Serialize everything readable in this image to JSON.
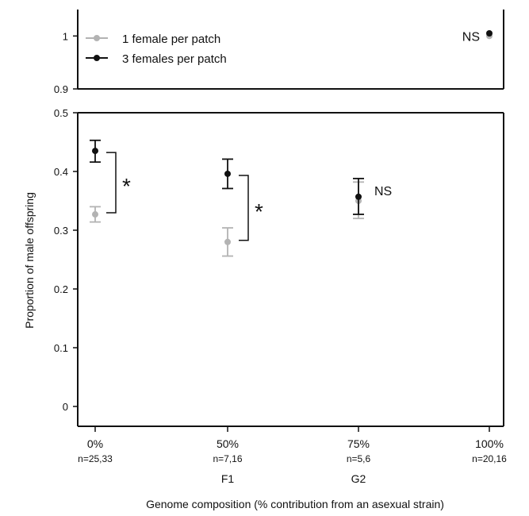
{
  "chart_data": {
    "type": "scatter",
    "xlabel": "Genome composition (% contribution from an asexual strain)",
    "ylabel": "Proportion of male offspring",
    "categories": [
      {
        "label": "0%",
        "n": "n=25,33",
        "sub": ""
      },
      {
        "label": "50%",
        "n": "n=7,16",
        "sub": "F1"
      },
      {
        "label": "75%",
        "n": "n=5,6",
        "sub": "G2"
      },
      {
        "label": "100%",
        "n": "n=20,16",
        "sub": ""
      }
    ],
    "main_ylim": [
      0,
      0.5
    ],
    "main_yticks": [
      "0",
      "0.1",
      "0.2",
      "0.3",
      "0.4",
      "0.5"
    ],
    "top_ylim": [
      0.9,
      1.05
    ],
    "top_yticks": [
      "0.9",
      "1"
    ],
    "series": [
      {
        "name": "1 female per patch",
        "color": "#b3b3b3",
        "points": [
          {
            "cat": 0,
            "y": 0.327,
            "lo": 0.314,
            "hi": 0.34
          },
          {
            "cat": 1,
            "y": 0.28,
            "lo": 0.256,
            "hi": 0.304
          },
          {
            "cat": 2,
            "y": 0.35,
            "lo": 0.32,
            "hi": 0.382
          },
          {
            "cat": 3,
            "y": 1.0,
            "lo": 1.0,
            "hi": 1.0
          }
        ]
      },
      {
        "name": "3 females per patch",
        "color": "#111111",
        "points": [
          {
            "cat": 0,
            "y": 0.435,
            "lo": 0.416,
            "hi": 0.453
          },
          {
            "cat": 1,
            "y": 0.396,
            "lo": 0.371,
            "hi": 0.421
          },
          {
            "cat": 2,
            "y": 0.357,
            "lo": 0.327,
            "hi": 0.388
          },
          {
            "cat": 3,
            "y": 1.005,
            "lo": 1.005,
            "hi": 1.005
          }
        ]
      }
    ],
    "annotations": [
      {
        "text": "*",
        "cat": 0,
        "kind": "bracket",
        "y_low": 0.327,
        "y_high": 0.435
      },
      {
        "text": "*",
        "cat": 1,
        "kind": "bracket",
        "y_low": 0.28,
        "y_high": 0.396
      },
      {
        "text": "NS",
        "cat": 2,
        "kind": "label",
        "y": 0.357
      },
      {
        "text": "NS",
        "cat": 3,
        "kind": "label-top",
        "y": 1.0
      }
    ],
    "legend_position": "top-left"
  }
}
